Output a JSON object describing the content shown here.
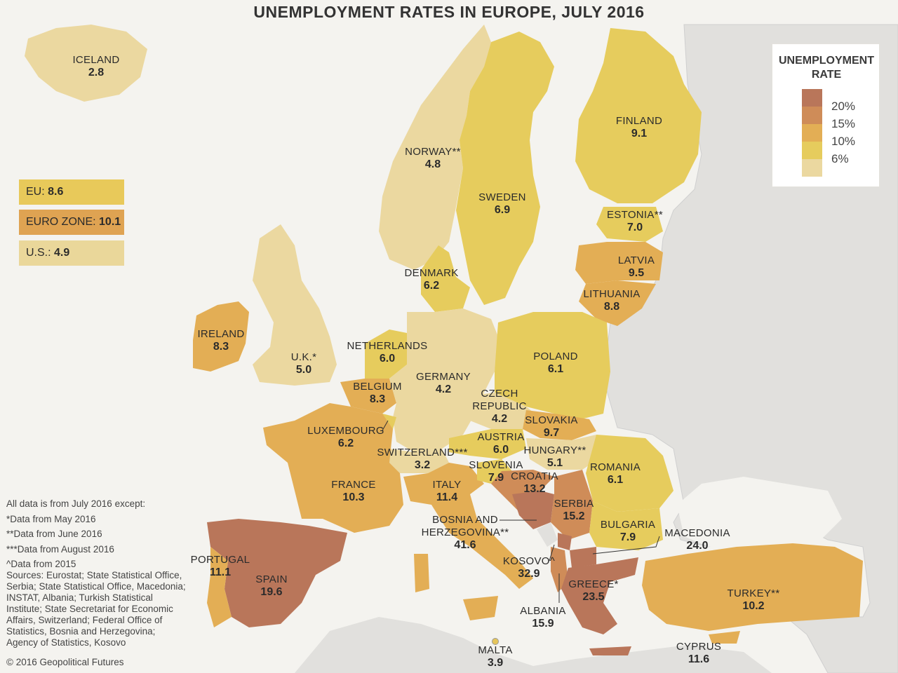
{
  "title": "UNEMPLOYMENT RATES IN EUROPE, JULY 2016",
  "summary": {
    "eu": {
      "label": "EU:",
      "value": "8.6",
      "color": "#e8c95a"
    },
    "eurozone": {
      "label": "EURO ZONE:",
      "value": "10.1",
      "color": "#dfa352"
    },
    "us": {
      "label": "U.S.:",
      "value": "4.9",
      "color": "#ead79a"
    }
  },
  "legend": {
    "title": "UNEMPLOYMENT RATE",
    "items": [
      {
        "label": "20%",
        "color": "#b9765a"
      },
      {
        "label": "15%",
        "color": "#cf8c58"
      },
      {
        "label": "10%",
        "color": "#e3ae55"
      },
      {
        "label": "6%",
        "color": "#e6cc5d"
      },
      {
        "label": "",
        "color": "#ebd8a0"
      }
    ]
  },
  "countries": [
    {
      "name": "ICELAND",
      "value": "2.8"
    },
    {
      "name": "NORWAY**",
      "value": "4.8"
    },
    {
      "name": "FINLAND",
      "value": "9.1"
    },
    {
      "name": "SWEDEN",
      "value": "6.9"
    },
    {
      "name": "ESTONIA**",
      "value": "7.0"
    },
    {
      "name": "LATVIA",
      "value": "9.5"
    },
    {
      "name": "LITHUANIA",
      "value": "8.8"
    },
    {
      "name": "DENMARK",
      "value": "6.2"
    },
    {
      "name": "IRELAND",
      "value": "8.3"
    },
    {
      "name": "U.K.*",
      "value": "5.0"
    },
    {
      "name": "NETHERLANDS",
      "value": "6.0"
    },
    {
      "name": "BELGIUM",
      "value": "8.3"
    },
    {
      "name": "GERMANY",
      "value": "4.2"
    },
    {
      "name": "POLAND",
      "value": "6.1"
    },
    {
      "name": "CZECH REPUBLIC",
      "value": "4.2"
    },
    {
      "name": "SLOVAKIA",
      "value": "9.7"
    },
    {
      "name": "LUXEMBOURG",
      "value": "6.2"
    },
    {
      "name": "AUSTRIA",
      "value": "6.0"
    },
    {
      "name": "SWITZERLAND***",
      "value": "3.2"
    },
    {
      "name": "HUNGARY**",
      "value": "5.1"
    },
    {
      "name": "SLOVENIA",
      "value": "7.9"
    },
    {
      "name": "CROATIA",
      "value": "13.2"
    },
    {
      "name": "ROMANIA",
      "value": "6.1"
    },
    {
      "name": "FRANCE",
      "value": "10.3"
    },
    {
      "name": "ITALY",
      "value": "11.4"
    },
    {
      "name": "SERBIA",
      "value": "15.2"
    },
    {
      "name": "BOSNIA AND HERZEGOVINA**",
      "value": "41.6"
    },
    {
      "name": "BULGARIA",
      "value": "7.9"
    },
    {
      "name": "MACEDONIA",
      "value": "24.0"
    },
    {
      "name": "PORTUGAL",
      "value": "11.1"
    },
    {
      "name": "SPAIN",
      "value": "19.6"
    },
    {
      "name": "KOSOVO^",
      "value": "32.9"
    },
    {
      "name": "GREECE*",
      "value": "23.5"
    },
    {
      "name": "ALBANIA",
      "value": "15.9"
    },
    {
      "name": "TURKEY**",
      "value": "10.2"
    },
    {
      "name": "MALTA",
      "value": "3.9"
    },
    {
      "name": "CYPRUS",
      "value": "11.6"
    }
  ],
  "notes": {
    "lines": [
      "All data is from July 2016 except:",
      "*Data from May 2016",
      "**Data from June 2016",
      "***Data from August 2016",
      "^Data from 2015"
    ],
    "sources": [
      "Sources: Eurostat; State Statistical Office,",
      "Serbia; State Statistical Office, Macedonia;",
      "INSTAT, Albania; Turkish Statistical",
      "Institute;  State Secretariat for Economic",
      "Affairs, Switzerland; Federal Office of",
      "Statistics, Bosnia and Herzegovina;",
      "Agency of Statistics, Kosovo"
    ],
    "copyright": "© 2016 Geopolitical Futures"
  }
}
